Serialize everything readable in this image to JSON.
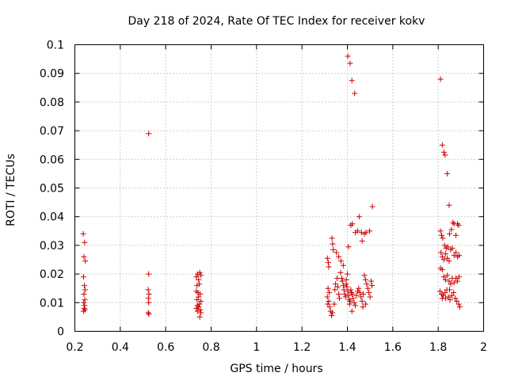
{
  "chart_data": {
    "type": "scatter",
    "title": "Day 218 of 2024, Rate Of TEC Index for receiver kokv",
    "xlabel": "GPS time / hours",
    "ylabel": "ROTI / TECUs",
    "xlim": [
      0.2,
      2.0
    ],
    "ylim": [
      0,
      0.1
    ],
    "grid": true,
    "marker": "+",
    "color": "#cc0000",
    "xticks": [
      {
        "value": 0.2,
        "label": "0.2"
      },
      {
        "value": 0.4,
        "label": "0.4"
      },
      {
        "value": 0.6,
        "label": "0.6"
      },
      {
        "value": 0.8,
        "label": "0.8"
      },
      {
        "value": 1.0,
        "label": "1"
      },
      {
        "value": 1.2,
        "label": "1.2"
      },
      {
        "value": 1.4,
        "label": "1.4"
      },
      {
        "value": 1.6,
        "label": "1.6"
      },
      {
        "value": 1.8,
        "label": "1.8"
      },
      {
        "value": 2.0,
        "label": "2"
      }
    ],
    "yticks": [
      {
        "value": 0.0,
        "label": "0"
      },
      {
        "value": 0.01,
        "label": "0.01"
      },
      {
        "value": 0.02,
        "label": "0.02"
      },
      {
        "value": 0.03,
        "label": "0.03"
      },
      {
        "value": 0.04,
        "label": "0.04"
      },
      {
        "value": 0.05,
        "label": "0.05"
      },
      {
        "value": 0.06,
        "label": "0.06"
      },
      {
        "value": 0.07,
        "label": "0.07"
      },
      {
        "value": 0.08,
        "label": "0.08"
      },
      {
        "value": 0.09,
        "label": "0.09"
      },
      {
        "value": 0.1,
        "label": "0.1"
      }
    ],
    "series": [
      {
        "name": "ROTI",
        "points": [
          [
            0.237,
            0.034
          ],
          [
            0.24,
            0.026
          ],
          [
            0.243,
            0.031
          ],
          [
            0.246,
            0.0245
          ],
          [
            0.238,
            0.019
          ],
          [
            0.242,
            0.016
          ],
          [
            0.245,
            0.0145
          ],
          [
            0.24,
            0.013
          ],
          [
            0.244,
            0.011
          ],
          [
            0.239,
            0.01
          ],
          [
            0.243,
            0.009
          ],
          [
            0.241,
            0.008
          ],
          [
            0.245,
            0.0075
          ],
          [
            0.238,
            0.007
          ],
          [
            0.525,
            0.069
          ],
          [
            0.525,
            0.02
          ],
          [
            0.523,
            0.0145
          ],
          [
            0.526,
            0.013
          ],
          [
            0.524,
            0.0115
          ],
          [
            0.525,
            0.01
          ],
          [
            0.523,
            0.0065
          ],
          [
            0.526,
            0.006
          ],
          [
            0.735,
            0.019
          ],
          [
            0.74,
            0.02
          ],
          [
            0.745,
            0.018
          ],
          [
            0.75,
            0.0205
          ],
          [
            0.755,
            0.0195
          ],
          [
            0.738,
            0.016
          ],
          [
            0.748,
            0.0165
          ],
          [
            0.735,
            0.014
          ],
          [
            0.742,
            0.0135
          ],
          [
            0.752,
            0.013
          ],
          [
            0.745,
            0.012
          ],
          [
            0.738,
            0.011
          ],
          [
            0.755,
            0.0105
          ],
          [
            0.74,
            0.009
          ],
          [
            0.748,
            0.0095
          ],
          [
            0.735,
            0.008
          ],
          [
            0.745,
            0.0085
          ],
          [
            0.752,
            0.0075
          ],
          [
            0.74,
            0.007
          ],
          [
            0.755,
            0.0065
          ],
          [
            0.75,
            0.005
          ],
          [
            1.312,
            0.0255
          ],
          [
            1.316,
            0.024
          ],
          [
            1.318,
            0.0225
          ],
          [
            1.332,
            0.0325
          ],
          [
            1.335,
            0.0305
          ],
          [
            1.338,
            0.0285
          ],
          [
            1.352,
            0.0275
          ],
          [
            1.362,
            0.026
          ],
          [
            1.372,
            0.0245
          ],
          [
            1.382,
            0.023
          ],
          [
            1.315,
            0.015
          ],
          [
            1.32,
            0.0135
          ],
          [
            1.312,
            0.012
          ],
          [
            1.318,
            0.0105
          ],
          [
            1.314,
            0.0095
          ],
          [
            1.322,
            0.0085
          ],
          [
            1.326,
            0.007
          ],
          [
            1.33,
            0.0055
          ],
          [
            1.334,
            0.0065
          ],
          [
            1.342,
            0.0095
          ],
          [
            1.345,
            0.0145
          ],
          [
            1.348,
            0.0165
          ],
          [
            1.355,
            0.0185
          ],
          [
            1.358,
            0.0155
          ],
          [
            1.362,
            0.013
          ],
          [
            1.365,
            0.0115
          ],
          [
            1.37,
            0.0205
          ],
          [
            1.375,
            0.0185
          ],
          [
            1.378,
            0.0175
          ],
          [
            1.382,
            0.016
          ],
          [
            1.385,
            0.0145
          ],
          [
            1.388,
            0.013
          ],
          [
            1.392,
            0.012
          ],
          [
            1.395,
            0.0165
          ],
          [
            1.398,
            0.0155
          ],
          [
            1.402,
            0.014
          ],
          [
            1.405,
            0.0125
          ],
          [
            1.408,
            0.011
          ],
          [
            1.412,
            0.0105
          ],
          [
            1.415,
            0.0145
          ],
          [
            1.418,
            0.0135
          ],
          [
            1.422,
            0.013
          ],
          [
            1.425,
            0.0115
          ],
          [
            1.43,
            0.01
          ],
          [
            1.435,
            0.009
          ],
          [
            1.44,
            0.0125
          ],
          [
            1.445,
            0.014
          ],
          [
            1.45,
            0.015
          ],
          [
            1.455,
            0.0135
          ],
          [
            1.46,
            0.012
          ],
          [
            1.465,
            0.0105
          ],
          [
            1.47,
            0.013
          ],
          [
            1.475,
            0.0195
          ],
          [
            1.48,
            0.018
          ],
          [
            1.485,
            0.0165
          ],
          [
            1.49,
            0.015
          ],
          [
            1.495,
            0.0135
          ],
          [
            1.5,
            0.012
          ],
          [
            1.505,
            0.0175
          ],
          [
            1.508,
            0.016
          ],
          [
            1.402,
            0.096
          ],
          [
            1.412,
            0.0935
          ],
          [
            1.42,
            0.0875
          ],
          [
            1.432,
            0.083
          ],
          [
            1.405,
            0.0295
          ],
          [
            1.415,
            0.037
          ],
          [
            1.422,
            0.0375
          ],
          [
            1.435,
            0.0345
          ],
          [
            1.445,
            0.035
          ],
          [
            1.452,
            0.04
          ],
          [
            1.462,
            0.0345
          ],
          [
            1.465,
            0.0315
          ],
          [
            1.475,
            0.034
          ],
          [
            1.482,
            0.0345
          ],
          [
            1.498,
            0.035
          ],
          [
            1.51,
            0.0435
          ],
          [
            1.4,
            0.02
          ],
          [
            1.395,
            0.018
          ],
          [
            1.41,
            0.0095
          ],
          [
            1.42,
            0.007
          ],
          [
            1.468,
            0.0085
          ],
          [
            1.48,
            0.0095
          ],
          [
            1.81,
            0.088
          ],
          [
            1.818,
            0.065
          ],
          [
            1.825,
            0.0625
          ],
          [
            1.83,
            0.0615
          ],
          [
            1.84,
            0.055
          ],
          [
            1.848,
            0.044
          ],
          [
            1.81,
            0.035
          ],
          [
            1.815,
            0.0335
          ],
          [
            1.82,
            0.0325
          ],
          [
            1.828,
            0.03
          ],
          [
            1.835,
            0.029
          ],
          [
            1.842,
            0.0295
          ],
          [
            1.85,
            0.034
          ],
          [
            1.858,
            0.0355
          ],
          [
            1.865,
            0.038
          ],
          [
            1.87,
            0.0375
          ],
          [
            1.878,
            0.0335
          ],
          [
            1.885,
            0.0375
          ],
          [
            1.89,
            0.037
          ],
          [
            1.812,
            0.0275
          ],
          [
            1.818,
            0.026
          ],
          [
            1.825,
            0.025
          ],
          [
            1.832,
            0.027
          ],
          [
            1.84,
            0.0255
          ],
          [
            1.848,
            0.0245
          ],
          [
            1.855,
            0.0285
          ],
          [
            1.862,
            0.029
          ],
          [
            1.87,
            0.0265
          ],
          [
            1.878,
            0.0275
          ],
          [
            1.885,
            0.026
          ],
          [
            1.892,
            0.0265
          ],
          [
            1.81,
            0.022
          ],
          [
            1.818,
            0.0215
          ],
          [
            1.825,
            0.019
          ],
          [
            1.832,
            0.018
          ],
          [
            1.84,
            0.0195
          ],
          [
            1.848,
            0.0175
          ],
          [
            1.855,
            0.0165
          ],
          [
            1.862,
            0.0185
          ],
          [
            1.87,
            0.017
          ],
          [
            1.878,
            0.0185
          ],
          [
            1.885,
            0.0175
          ],
          [
            1.892,
            0.019
          ],
          [
            1.808,
            0.014
          ],
          [
            1.815,
            0.013
          ],
          [
            1.822,
            0.0125
          ],
          [
            1.83,
            0.0135
          ],
          [
            1.838,
            0.0145
          ],
          [
            1.845,
            0.012
          ],
          [
            1.852,
            0.011
          ],
          [
            1.86,
            0.0125
          ],
          [
            1.868,
            0.0135
          ],
          [
            1.875,
            0.0115
          ],
          [
            1.882,
            0.0105
          ],
          [
            1.89,
            0.0095
          ],
          [
            1.895,
            0.0085
          ],
          [
            1.818,
            0.0115
          ],
          [
            1.832,
            0.0115
          ],
          [
            1.85,
            0.0145
          ]
        ]
      }
    ]
  }
}
